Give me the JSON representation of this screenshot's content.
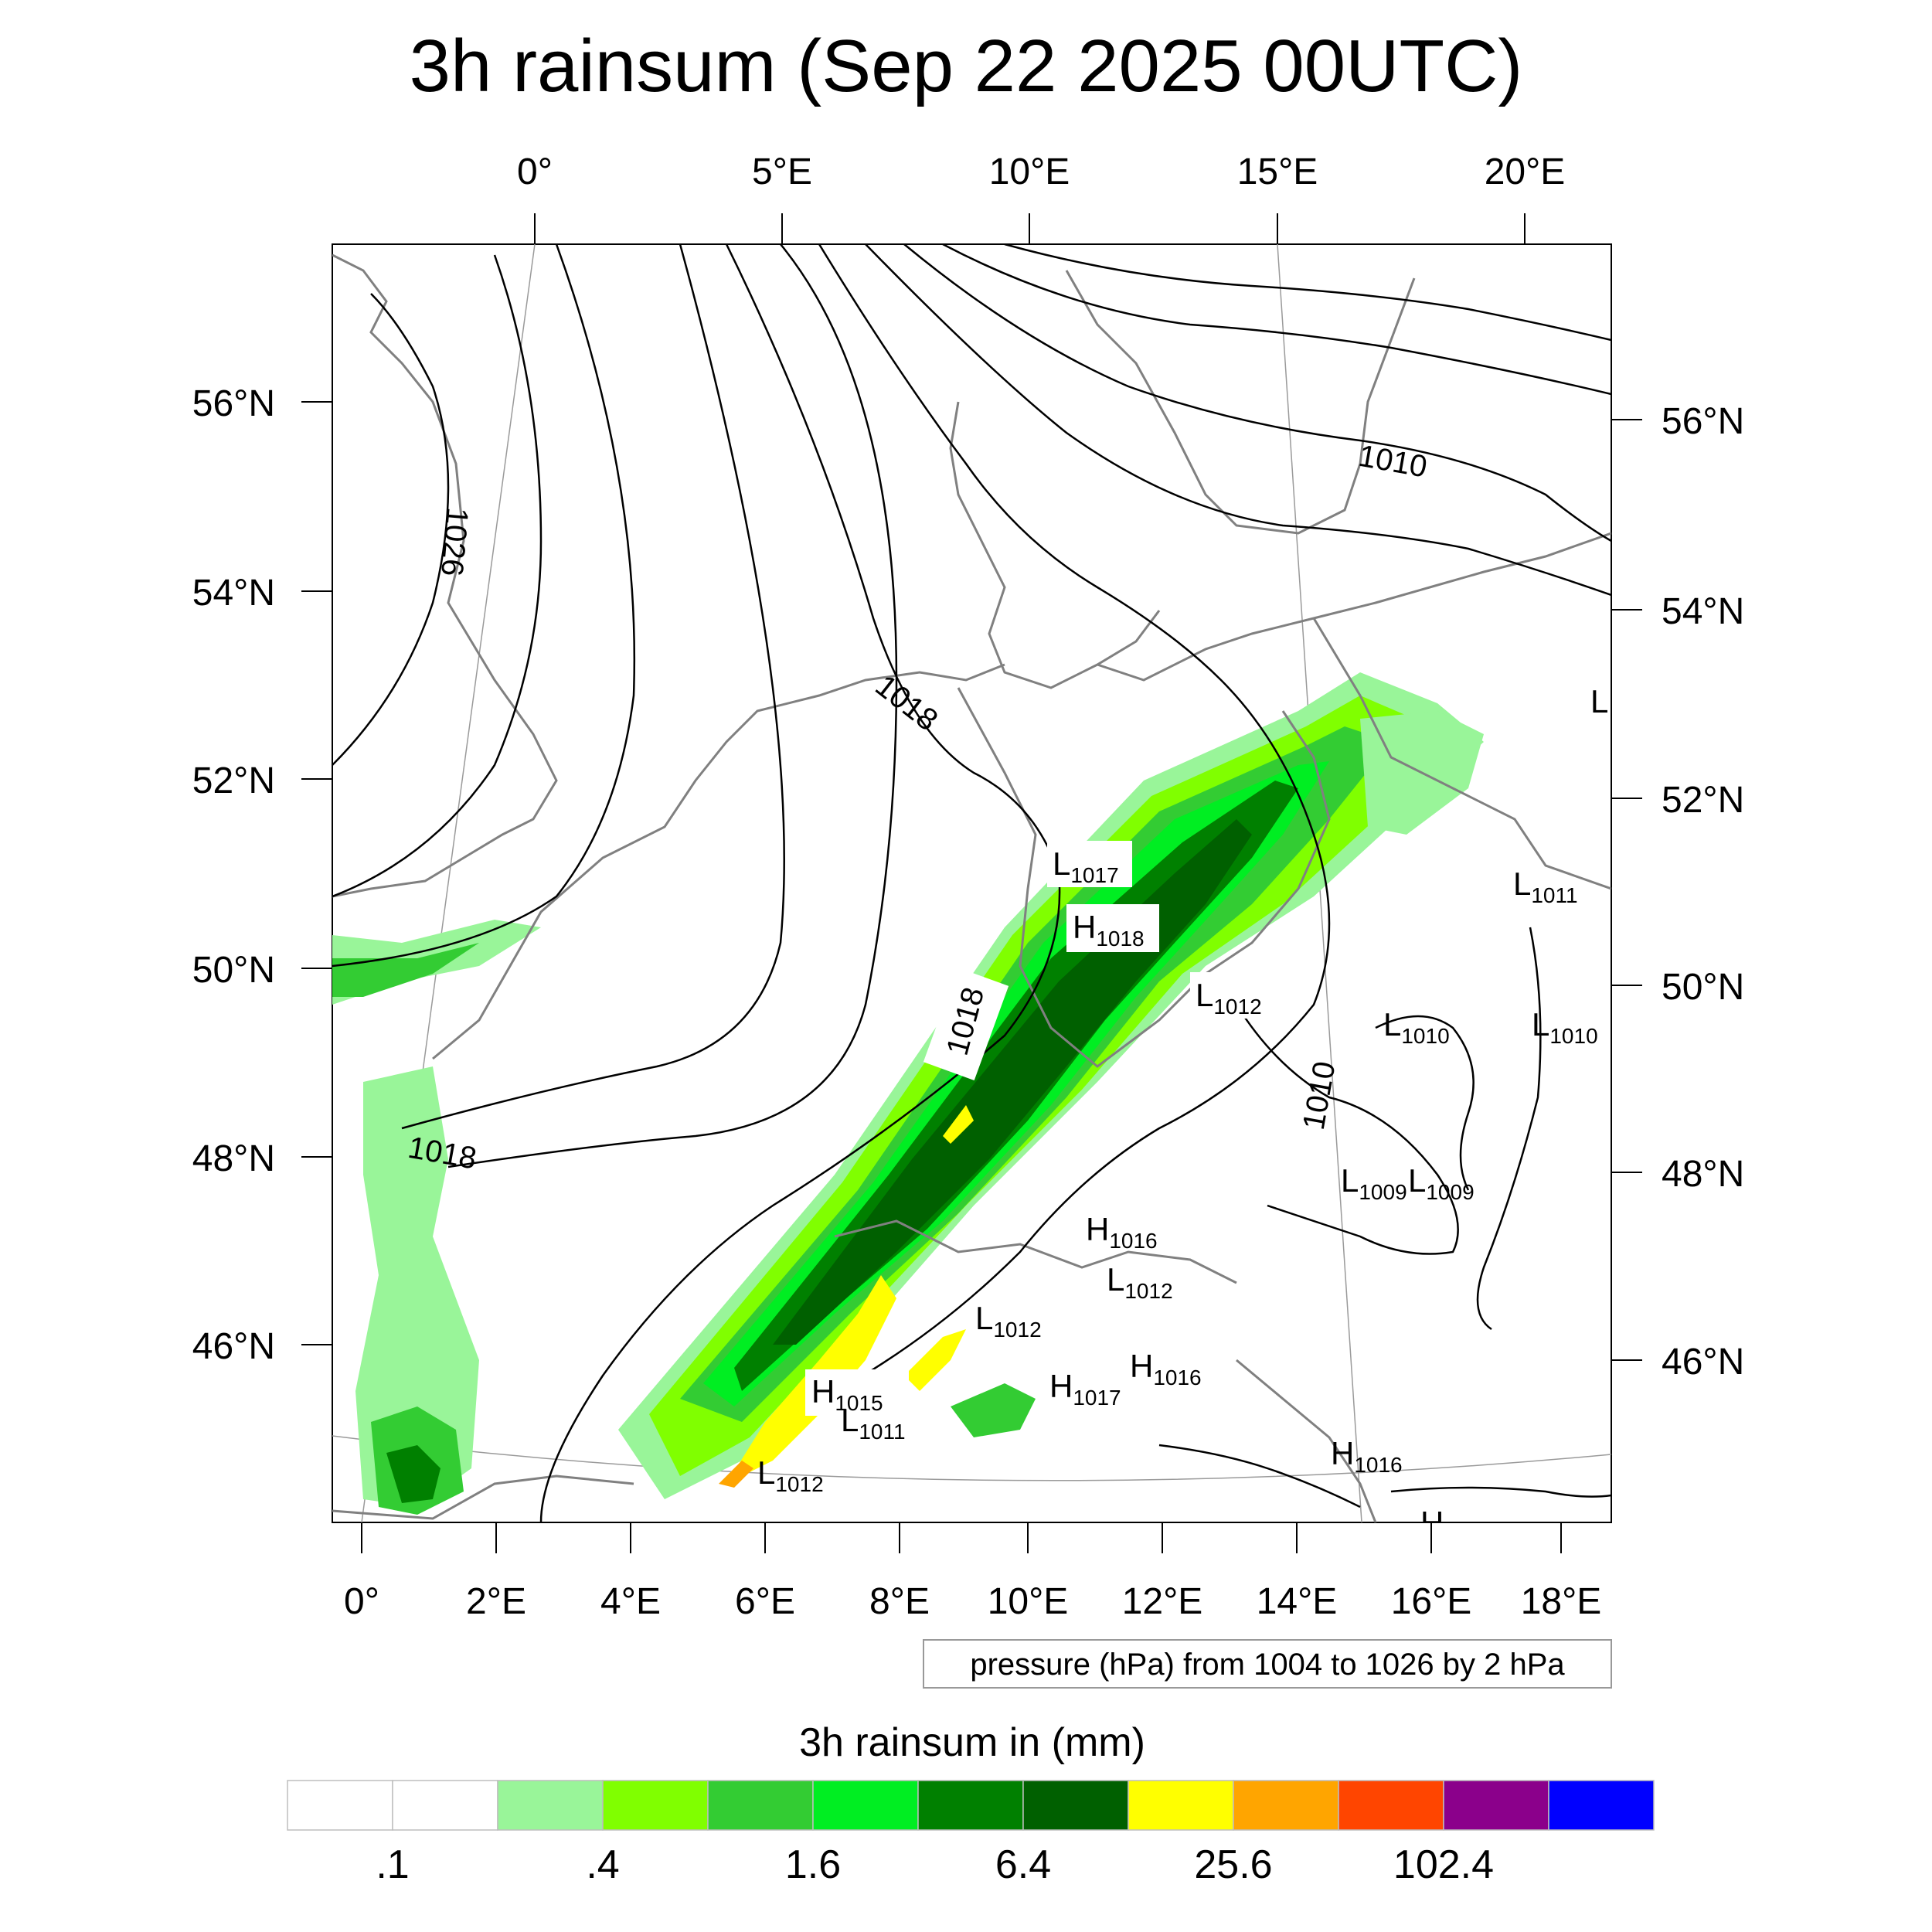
{
  "title": "3h rainsum (Sep 22 2025 00UTC)",
  "top_lon_labels": [
    "0°",
    "5°E",
    "10°E",
    "15°E",
    "20°E"
  ],
  "bottom_lon_labels": [
    "0°",
    "2°E",
    "4°E",
    "6°E",
    "8°E",
    "10°E",
    "12°E",
    "14°E",
    "16°E",
    "18°E"
  ],
  "left_lat_labels": [
    "56°N",
    "54°N",
    "52°N",
    "50°N",
    "48°N",
    "46°N"
  ],
  "right_lat_labels": [
    "56°N",
    "54°N",
    "52°N",
    "50°N",
    "48°N",
    "46°N"
  ],
  "contour_labels": [
    "1026",
    "1018",
    "1018",
    "1018",
    "1010",
    "1010"
  ],
  "pressure_centers": [
    {
      "type": "L",
      "value": "1017"
    },
    {
      "type": "H",
      "value": "1018"
    },
    {
      "type": "L",
      "value": "1012"
    },
    {
      "type": "L",
      "value": "1011"
    },
    {
      "type": "L",
      "value": "1010"
    },
    {
      "type": "L",
      "value": "1010"
    },
    {
      "type": "L",
      "value": "1009"
    },
    {
      "type": "L",
      "value": "1009"
    },
    {
      "type": "H",
      "value": "1016"
    },
    {
      "type": "L",
      "value": "1012"
    },
    {
      "type": "L",
      "value": "1012"
    },
    {
      "type": "H",
      "value": "1016"
    },
    {
      "type": "H",
      "value": "1017"
    },
    {
      "type": "H",
      "value": "1015"
    },
    {
      "type": "L",
      "value": "1011"
    },
    {
      "type": "L",
      "value": "1012"
    },
    {
      "type": "H",
      "value": "1016"
    },
    {
      "type": "L",
      "value": ""
    },
    {
      "type": "H",
      "value": ""
    }
  ],
  "contour_note": "pressure (hPa) from 1004 to 1026 by 2 hPa",
  "colorbar": {
    "title": "3h rainsum in (mm)",
    "colors": [
      "#ffffff",
      "#ffffff",
      "#99f599",
      "#80ff00",
      "#33cc33",
      "#00ee22",
      "#008000",
      "#006000",
      "#ffff00",
      "#ffa500",
      "#ff4500",
      "#8b008b",
      "#0000ff"
    ],
    "labels": [
      ".1",
      ".4",
      "1.6",
      "6.4",
      "25.6",
      "102.4"
    ]
  }
}
